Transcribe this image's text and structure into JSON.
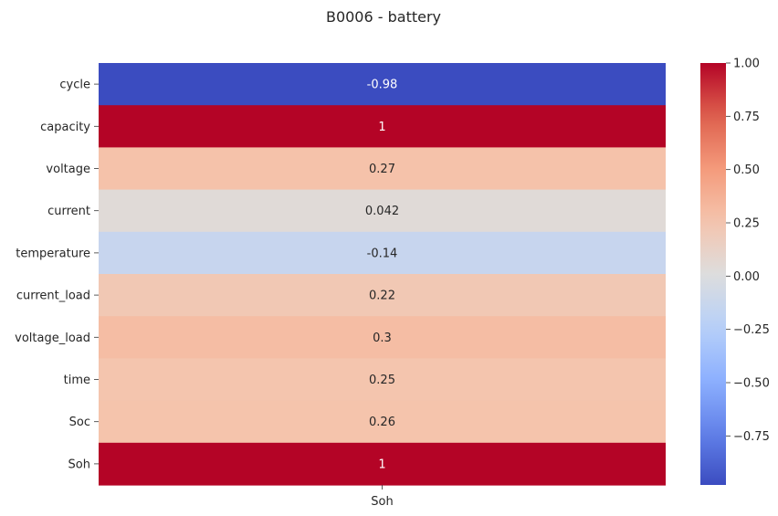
{
  "chart_data": {
    "type": "heatmap",
    "title": "B0006 - battery",
    "xlabel": "",
    "ylabel": "",
    "x_categories": [
      "Soh"
    ],
    "y_categories": [
      "cycle",
      "capacity",
      "voltage",
      "current",
      "temperature",
      "current_load",
      "voltage_load",
      "time",
      "Soc",
      "Soh"
    ],
    "values": [
      -0.98,
      1.0,
      0.27,
      0.042,
      -0.14,
      0.22,
      0.3,
      0.25,
      0.26,
      1.0
    ],
    "annotations": [
      "-0.98",
      "1",
      "0.27",
      "0.042",
      "-0.14",
      "0.22",
      "0.3",
      "0.25",
      "0.26",
      "1"
    ],
    "colormap": "coolwarm",
    "color_range": [
      -0.98,
      1.0
    ],
    "colorbar": {
      "position": "right",
      "ticks": [
        1.0,
        0.75,
        0.5,
        0.25,
        0.0,
        -0.25,
        -0.5,
        -0.75
      ],
      "tick_labels": [
        "1.00",
        "0.75",
        "0.50",
        "0.25",
        "0.00",
        "−0.25",
        "−0.50",
        "−0.75"
      ]
    },
    "grid": false
  }
}
